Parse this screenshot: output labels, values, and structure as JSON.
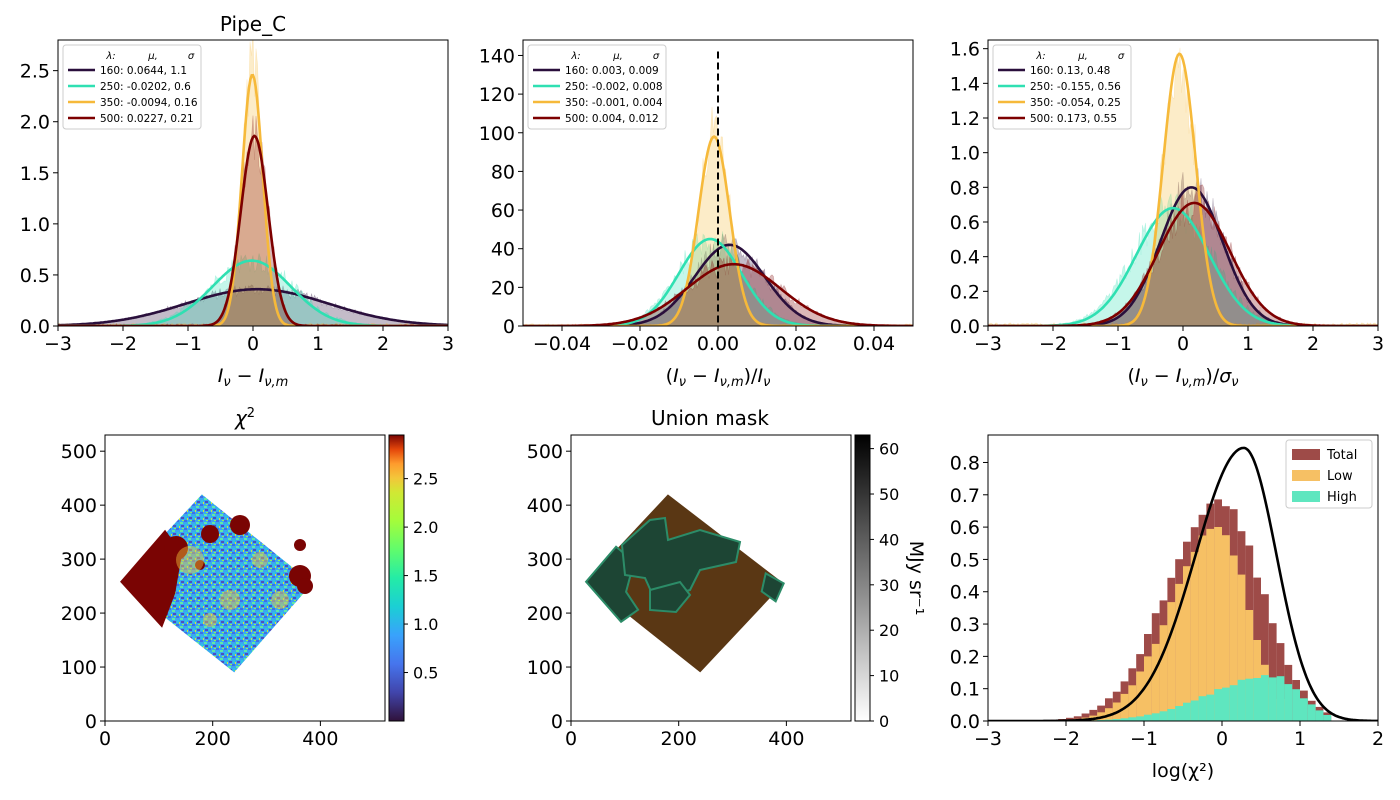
{
  "figure": {
    "colors": {
      "l160": "#2a0f3c",
      "l250": "#2fe0b2",
      "l350": "#f6b93a",
      "l500": "#7d0000",
      "dashed": "#000000"
    },
    "colorbar_chi2_ticks": [
      "0.5",
      "1.0",
      "1.5",
      "2.0",
      "2.5"
    ],
    "colorbar_mask_ticks": [
      "0",
      "10",
      "20",
      "30",
      "40",
      "50",
      "60"
    ],
    "colorbar_mask_label": "MJy sr⁻¹"
  },
  "chart_data": [
    {
      "type": "line",
      "panel": "p1",
      "title": "Pipe_C",
      "xlabel": "Iν − Iν,m",
      "ylabel": "",
      "xlim": [
        -3,
        3
      ],
      "ylim": [
        0,
        2.8
      ],
      "xticks": [
        "−3",
        "−2",
        "−1",
        "0",
        "1",
        "2",
        "3"
      ],
      "yticks": [
        "0.0",
        "0.5",
        "1.0",
        "1.5",
        "2.0",
        "2.5"
      ],
      "legend": {
        "position": "top-left",
        "header": [
          "λ:",
          "μ,",
          "σ"
        ],
        "entries": [
          "160: 0.0644,  1.1",
          "250: -0.0202,  0.6",
          "350: -0.0094,  0.16",
          "500: 0.0227,  0.21"
        ]
      },
      "series": [
        {
          "name": "160",
          "mu": 0.0644,
          "sigma": 1.1,
          "peak": 0.36
        },
        {
          "name": "250",
          "mu": -0.0202,
          "sigma": 0.6,
          "peak": 0.64
        },
        {
          "name": "350",
          "mu": -0.0094,
          "sigma": 0.16,
          "peak": 2.46
        },
        {
          "name": "500",
          "mu": 0.0227,
          "sigma": 0.21,
          "peak": 1.86
        }
      ]
    },
    {
      "type": "line",
      "panel": "p2",
      "title": "",
      "xlabel": "(Iν − Iν,m)/Iν",
      "ylabel": "",
      "xlim": [
        -0.05,
        0.05
      ],
      "ylim": [
        0,
        148
      ],
      "xticks": [
        "−0.04",
        "−0.02",
        "0.00",
        "0.02",
        "0.04"
      ],
      "yticks": [
        "0",
        "20",
        "40",
        "60",
        "80",
        "100",
        "120",
        "140"
      ],
      "legend": {
        "position": "top-left",
        "header": [
          "λ:",
          "μ,",
          "σ"
        ],
        "entries": [
          "160: 0.003,  0.009",
          "250: -0.002,  0.008",
          "350: -0.001,  0.004",
          "500: 0.004,  0.012"
        ]
      },
      "vline": 0.0,
      "series": [
        {
          "name": "160",
          "mu": 0.003,
          "sigma": 0.009,
          "peak": 42
        },
        {
          "name": "250",
          "mu": -0.002,
          "sigma": 0.008,
          "peak": 45
        },
        {
          "name": "350",
          "mu": -0.001,
          "sigma": 0.004,
          "peak": 98
        },
        {
          "name": "500",
          "mu": 0.004,
          "sigma": 0.012,
          "peak": 32
        }
      ]
    },
    {
      "type": "line",
      "panel": "p3",
      "title": "",
      "xlabel": "(Iν − Iν,m)/σν",
      "ylabel": "",
      "xlim": [
        -3,
        3
      ],
      "ylim": [
        0,
        1.65
      ],
      "xticks": [
        "−3",
        "−2",
        "−1",
        "0",
        "1",
        "2",
        "3"
      ],
      "yticks": [
        "0.0",
        "0.2",
        "0.4",
        "0.6",
        "0.8",
        "1.0",
        "1.2",
        "1.4",
        "1.6"
      ],
      "legend": {
        "position": "top-left",
        "header": [
          "λ:",
          "μ,",
          "σ"
        ],
        "entries": [
          "160: 0.13,  0.48",
          "250: -0.155,  0.56",
          "350: -0.054,  0.25",
          "500: 0.173,  0.55"
        ]
      },
      "series": [
        {
          "name": "160",
          "mu": 0.13,
          "sigma": 0.48,
          "peak": 0.8
        },
        {
          "name": "250",
          "mu": -0.155,
          "sigma": 0.56,
          "peak": 0.68
        },
        {
          "name": "350",
          "mu": -0.054,
          "sigma": 0.25,
          "peak": 1.57
        },
        {
          "name": "500",
          "mu": 0.173,
          "sigma": 0.55,
          "peak": 0.71
        }
      ]
    },
    {
      "type": "heatmap",
      "panel": "p4",
      "title": "χ²",
      "xlim": [
        0,
        520
      ],
      "ylim": [
        0,
        530
      ],
      "xticks": [
        "0",
        "200",
        "400"
      ],
      "yticks": [
        "0",
        "100",
        "200",
        "300",
        "400",
        "500"
      ],
      "region_corners": [
        [
          180,
          420
        ],
        [
          385,
          255
        ],
        [
          240,
          90
        ],
        [
          28,
          258
        ]
      ],
      "colorbar_range": [
        0.0,
        2.95
      ]
    },
    {
      "type": "heatmap",
      "panel": "p5",
      "title": "Union mask",
      "xlim": [
        0,
        520
      ],
      "ylim": [
        0,
        530
      ],
      "xticks": [
        "0",
        "200",
        "400"
      ],
      "yticks": [
        "0",
        "100",
        "200",
        "300",
        "400",
        "500"
      ],
      "region_corners": [
        [
          180,
          420
        ],
        [
          395,
          255
        ],
        [
          240,
          90
        ],
        [
          28,
          258
        ]
      ],
      "colorbar_range": [
        0,
        63
      ]
    },
    {
      "type": "bar",
      "panel": "p6",
      "title": "",
      "xlabel": "log(χ²)",
      "ylabel": "",
      "xlim": [
        -3,
        2
      ],
      "ylim": [
        0,
        0.885
      ],
      "xticks": [
        "−3",
        "−2",
        "−1",
        "0",
        "1",
        "2"
      ],
      "yticks": [
        "0.0",
        "0.1",
        "0.2",
        "0.3",
        "0.4",
        "0.5",
        "0.6",
        "0.7",
        "0.8"
      ],
      "legend": {
        "position": "top-right",
        "entries": [
          "Total",
          "Low",
          "High"
        ]
      },
      "series": [
        {
          "name": "Total",
          "color": "#9e4b48"
        },
        {
          "name": "Low",
          "color": "#f6c064"
        },
        {
          "name": "High",
          "color": "#5fe6bf"
        }
      ],
      "curve": {
        "mu": 0.28,
        "sigma": 0.47,
        "peak": 0.845
      }
    }
  ]
}
